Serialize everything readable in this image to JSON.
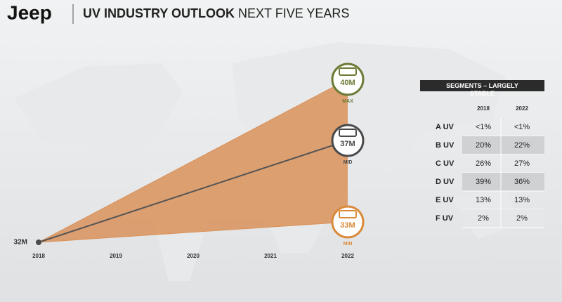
{
  "header": {
    "logo": "Jeep",
    "title_bold": "UV INDUSTRY OUTLOOK",
    "title_rest": "NEXT FIVE YEARS"
  },
  "chart_data": {
    "type": "fan",
    "origin": {
      "x": 2018,
      "value": 32,
      "label": "32M",
      "color": "#4a4a4a"
    },
    "fan_color": "#d9925a",
    "series": [
      {
        "name": "MAX",
        "x": 2022,
        "value": 40,
        "value_label": "40M",
        "color": "#6b7a35"
      },
      {
        "name": "MID",
        "x": 2022,
        "value": 37,
        "value_label": "37M",
        "color": "#4a4a4a",
        "line_color": "#555555"
      },
      {
        "name": "MIN",
        "x": 2022,
        "value": 33,
        "value_label": "33M",
        "color": "#d98a3a"
      }
    ],
    "xlim": [
      2018,
      2022
    ],
    "xticks": [
      2018,
      2019,
      2020,
      2021,
      2022
    ],
    "ylim": [
      32,
      40
    ]
  },
  "table": {
    "title": "SEGMENTS – LARGELY STABLE",
    "columns": [
      "2018",
      "2022"
    ],
    "rows": [
      [
        "A UV",
        "<1%",
        "<1%"
      ],
      [
        "B UV",
        "20%",
        "22%"
      ],
      [
        "C UV",
        "26%",
        "27%"
      ],
      [
        "D UV",
        "39%",
        "36%"
      ],
      [
        "E UV",
        "13%",
        "13%"
      ],
      [
        "F UV",
        "2%",
        "2%"
      ]
    ]
  }
}
